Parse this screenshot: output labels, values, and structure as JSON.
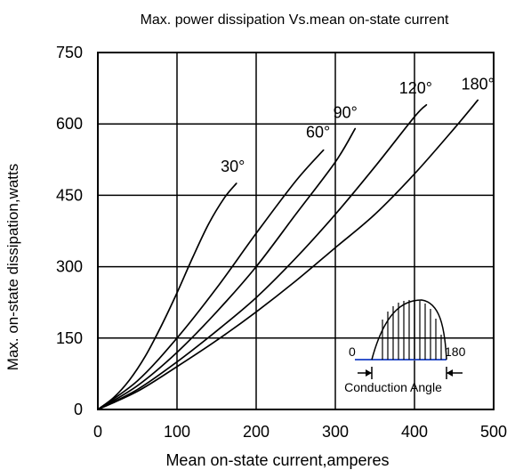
{
  "chart_data": {
    "type": "line",
    "title": "Max. power dissipation Vs.mean on-state current",
    "xlabel": "Mean on-state current,amperes",
    "ylabel": "Max. on-state dissipation,watts",
    "xlim": [
      0,
      500
    ],
    "ylim": [
      0,
      750
    ],
    "x_ticks": [
      0,
      100,
      200,
      300,
      400,
      500
    ],
    "y_ticks": [
      0,
      150,
      300,
      450,
      600,
      750
    ],
    "x_tick_labels": [
      "0",
      "100",
      "200",
      "300",
      "400",
      "500"
    ],
    "y_tick_labels": [
      "0",
      "150",
      "300",
      "450",
      "600",
      "750"
    ],
    "grid": true,
    "series": [
      {
        "name": "30°",
        "x": [
          0,
          20,
          40,
          60,
          80,
          100,
          120,
          140,
          160,
          175
        ],
        "y": [
          0,
          25,
          62,
          112,
          175,
          245,
          320,
          390,
          445,
          475
        ]
      },
      {
        "name": "60°",
        "x": [
          0,
          50,
          100,
          150,
          200,
          250,
          285
        ],
        "y": [
          0,
          60,
          150,
          255,
          370,
          480,
          545
        ]
      },
      {
        "name": "90°",
        "x": [
          0,
          50,
          100,
          150,
          200,
          250,
          300,
          325
        ],
        "y": [
          0,
          50,
          120,
          205,
          300,
          410,
          520,
          590
        ]
      },
      {
        "name": "120°",
        "x": [
          0,
          50,
          100,
          150,
          200,
          250,
          300,
          350,
          400,
          415
        ],
        "y": [
          0,
          42,
          100,
          165,
          235,
          318,
          410,
          510,
          615,
          640
        ]
      },
      {
        "name": "180°",
        "x": [
          0,
          50,
          100,
          150,
          200,
          250,
          300,
          350,
          400,
          450,
          480
        ],
        "y": [
          0,
          38,
          90,
          145,
          205,
          270,
          340,
          410,
          495,
          590,
          650
        ]
      }
    ],
    "inset": {
      "left_label": "0",
      "right_label": "180",
      "caption": "Conduction Angle"
    }
  }
}
